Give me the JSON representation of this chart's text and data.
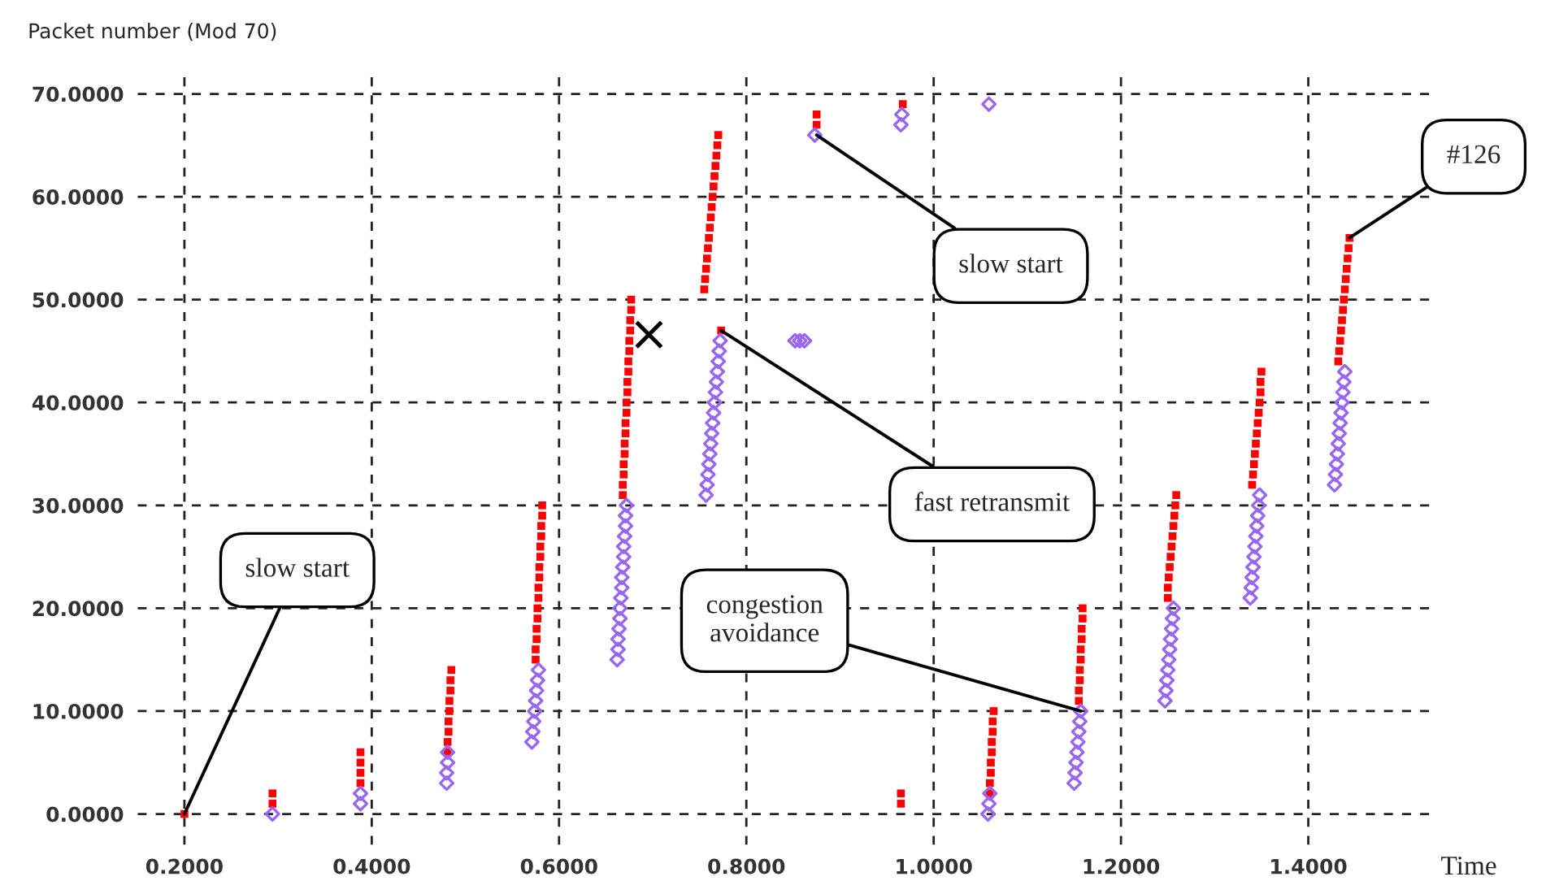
{
  "chart_data": {
    "type": "scatter",
    "xlabel": "Time",
    "ylabel": "Packet number (Mod 70)",
    "xlim": [
      0.15,
      1.53
    ],
    "ylim": [
      -3,
      72
    ],
    "xticks": [
      {
        "value": 0.2,
        "label": "0.2000"
      },
      {
        "value": 0.4,
        "label": "0.4000"
      },
      {
        "value": 0.6,
        "label": "0.6000"
      },
      {
        "value": 0.8,
        "label": "0.8000"
      },
      {
        "value": 1.0,
        "label": "1.0000"
      },
      {
        "value": 1.2,
        "label": "1.2000"
      },
      {
        "value": 1.4,
        "label": "1.4000"
      }
    ],
    "yticks": [
      {
        "value": 0,
        "label": "0.0000"
      },
      {
        "value": 10,
        "label": "10.0000"
      },
      {
        "value": 20,
        "label": "20.0000"
      },
      {
        "value": 30,
        "label": "30.0000"
      },
      {
        "value": 40,
        "label": "40.0000"
      },
      {
        "value": 50,
        "label": "50.0000"
      },
      {
        "value": 60,
        "label": "60.0000"
      },
      {
        "value": 70,
        "label": "70.0000"
      }
    ],
    "grid": true,
    "series": [
      {
        "color": "#ff0000",
        "marker": "square",
        "x": [
          0.2,
          0.294,
          0.294,
          0.388,
          0.388,
          0.388,
          0.388,
          0.481,
          0.481,
          0.482,
          0.482,
          0.483,
          0.483,
          0.484,
          0.484,
          0.485,
          0.575,
          0.575,
          0.576,
          0.576,
          0.577,
          0.577,
          0.578,
          0.578,
          0.579,
          0.579,
          0.58,
          0.58,
          0.581,
          0.581,
          0.582,
          0.582,
          0.668,
          0.668,
          0.669,
          0.669,
          0.67,
          0.67,
          0.671,
          0.671,
          0.672,
          0.672,
          0.673,
          0.673,
          0.674,
          0.674,
          0.675,
          0.675,
          0.676,
          0.676,
          0.677,
          0.677,
          0.755,
          0.756,
          0.757,
          0.758,
          0.759,
          0.76,
          0.761,
          0.762,
          0.763,
          0.764,
          0.765,
          0.766,
          0.767,
          0.768,
          0.769,
          0.77,
          0.773,
          0.875,
          0.875,
          0.967,
          0.965,
          0.965,
          1.06,
          1.06,
          1.061,
          1.061,
          1.062,
          1.062,
          1.063,
          1.063,
          1.064,
          1.155,
          1.155,
          1.156,
          1.156,
          1.157,
          1.157,
          1.158,
          1.158,
          1.159,
          1.159,
          1.25,
          1.25,
          1.251,
          1.252,
          1.253,
          1.254,
          1.255,
          1.256,
          1.257,
          1.258,
          1.259,
          1.34,
          1.341,
          1.342,
          1.343,
          1.344,
          1.345,
          1.346,
          1.347,
          1.348,
          1.349,
          1.349,
          1.35,
          1.432,
          1.433,
          1.434,
          1.435,
          1.436,
          1.437,
          1.438,
          1.439,
          1.44,
          1.441,
          1.442,
          1.443,
          1.444
        ],
        "values": [
          0,
          1,
          2,
          3,
          4,
          5,
          6,
          6,
          7,
          8,
          9,
          10,
          11,
          12,
          13,
          14,
          15,
          16,
          17,
          18,
          19,
          20,
          21,
          22,
          23,
          24,
          25,
          26,
          27,
          28,
          29,
          30,
          31,
          32,
          33,
          34,
          35,
          36,
          37,
          38,
          39,
          40,
          41,
          42,
          43,
          44,
          45,
          46,
          47,
          48,
          49,
          50,
          51,
          52,
          53,
          54,
          55,
          56,
          57,
          58,
          59,
          60,
          61,
          62,
          63,
          64,
          65,
          66,
          47,
          67,
          68,
          69,
          1,
          2,
          2,
          3,
          4,
          5,
          6,
          7,
          8,
          9,
          10,
          11,
          12,
          13,
          14,
          15,
          16,
          17,
          18,
          19,
          20,
          21,
          22,
          23,
          24,
          25,
          26,
          27,
          28,
          29,
          30,
          31,
          32,
          33,
          34,
          35,
          36,
          37,
          38,
          39,
          40,
          41,
          42,
          43,
          44,
          45,
          46,
          47,
          48,
          49,
          50,
          51,
          52,
          53,
          54,
          55,
          56
        ]
      },
      {
        "color": "#9966ee",
        "marker": "diamond",
        "x": [
          0.294,
          0.388,
          0.388,
          0.48,
          0.48,
          0.481,
          0.481,
          0.571,
          0.572,
          0.573,
          0.574,
          0.575,
          0.576,
          0.577,
          0.578,
          0.662,
          0.663,
          0.663,
          0.664,
          0.665,
          0.665,
          0.666,
          0.667,
          0.667,
          0.668,
          0.669,
          0.669,
          0.67,
          0.671,
          0.671,
          0.672,
          0.757,
          0.758,
          0.759,
          0.76,
          0.761,
          0.762,
          0.763,
          0.764,
          0.765,
          0.766,
          0.767,
          0.768,
          0.769,
          0.77,
          0.771,
          0.772,
          0.852,
          0.857,
          0.862,
          0.873,
          0.965,
          0.966,
          1.059,
          1.058,
          1.059,
          1.06,
          1.15,
          1.151,
          1.152,
          1.153,
          1.154,
          1.155,
          1.156,
          1.157,
          1.247,
          1.248,
          1.249,
          1.25,
          1.251,
          1.252,
          1.253,
          1.254,
          1.255,
          1.256,
          1.338,
          1.339,
          1.34,
          1.341,
          1.342,
          1.343,
          1.344,
          1.345,
          1.346,
          1.347,
          1.348,
          1.428,
          1.429,
          1.43,
          1.431,
          1.432,
          1.433,
          1.434,
          1.435,
          1.436,
          1.437,
          1.438,
          1.439
        ],
        "values": [
          0,
          1,
          2,
          3,
          4,
          5,
          6,
          7,
          8,
          9,
          10,
          11,
          12,
          13,
          14,
          15,
          16,
          17,
          18,
          19,
          20,
          21,
          22,
          23,
          24,
          25,
          26,
          27,
          28,
          29,
          30,
          31,
          32,
          33,
          34,
          35,
          36,
          37,
          38,
          39,
          40,
          41,
          42,
          43,
          44,
          45,
          46,
          46,
          46,
          46,
          66,
          67,
          68,
          69,
          0,
          1,
          2,
          3,
          4,
          5,
          6,
          7,
          8,
          9,
          10,
          11,
          12,
          13,
          14,
          15,
          16,
          17,
          18,
          19,
          20,
          21,
          22,
          23,
          24,
          25,
          26,
          27,
          28,
          29,
          30,
          31,
          32,
          33,
          34,
          35,
          36,
          37,
          38,
          39,
          40,
          41,
          42,
          43
        ]
      },
      {
        "color": "#000000",
        "marker": "cross",
        "x": [
          0.696
        ],
        "values": [
          46.6
        ]
      }
    ],
    "annotations": [
      {
        "text": "slow start",
        "x": 0.2,
        "y": 0
      },
      {
        "text": "fast retransmit",
        "x": 0.773,
        "y": 47
      },
      {
        "text": "slow start",
        "x": 0.875,
        "y": 66
      },
      {
        "text": "congestion\navoidance",
        "x": 1.157,
        "y": 10
      },
      {
        "text": "#126",
        "x": 1.444,
        "y": 56
      }
    ]
  }
}
